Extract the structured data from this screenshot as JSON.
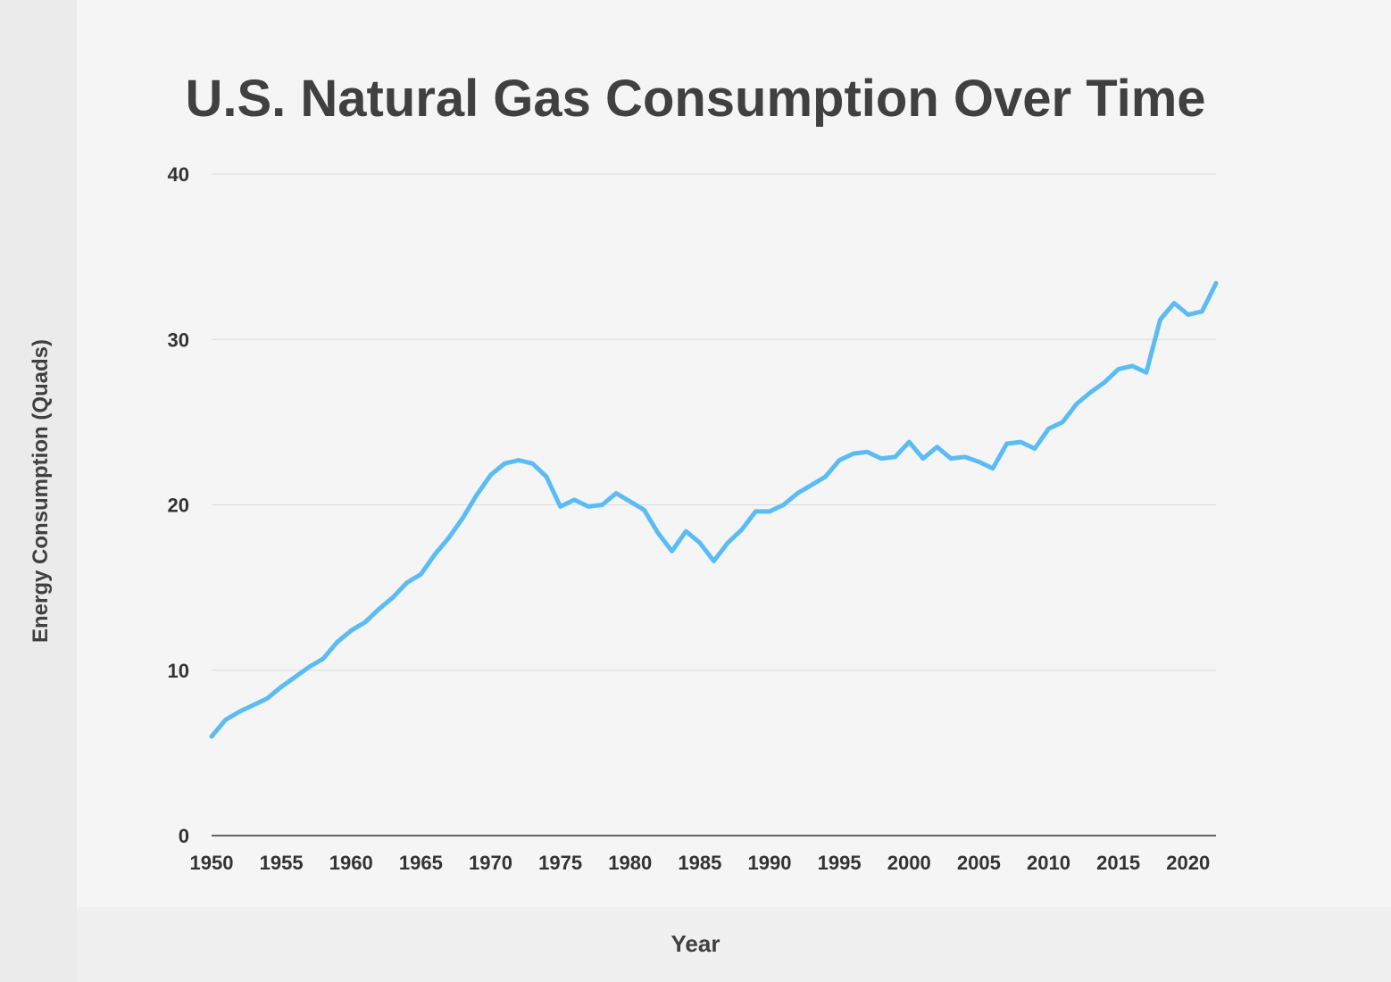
{
  "chart_data": {
    "type": "line",
    "title": "U.S. Natural Gas Consumption Over Time",
    "xlabel": "Year",
    "ylabel": "Energy Consumption (Quads)",
    "xlim": [
      1950,
      2022
    ],
    "ylim": [
      0,
      40
    ],
    "xticks": [
      1950,
      1955,
      1960,
      1965,
      1970,
      1975,
      1980,
      1985,
      1990,
      1995,
      2000,
      2005,
      2010,
      2015,
      2020
    ],
    "yticks": [
      0,
      10,
      20,
      30,
      40
    ],
    "grid": "horizontal",
    "line_color": "#5bbcf5",
    "series": [
      {
        "x": [
          1950,
          1951,
          1952,
          1953,
          1954,
          1955,
          1956,
          1957,
          1958,
          1959,
          1960,
          1961,
          1962,
          1963,
          1964,
          1965,
          1966,
          1967,
          1968,
          1969,
          1970,
          1971,
          1972,
          1973,
          1974,
          1975,
          1976,
          1977,
          1978,
          1979,
          1980,
          1981,
          1982,
          1983,
          1984,
          1985,
          1986,
          1987,
          1988,
          1989,
          1990,
          1991,
          1992,
          1993,
          1994,
          1995,
          1996,
          1997,
          1998,
          1999,
          2000,
          2001,
          2002,
          2003,
          2004,
          2005,
          2006,
          2007,
          2008,
          2009,
          2010,
          2011,
          2012,
          2013,
          2014,
          2015,
          2016,
          2017,
          2018,
          2019,
          2020,
          2021,
          2022
        ],
        "values": [
          6.0,
          7.0,
          7.5,
          7.9,
          8.3,
          9.0,
          9.6,
          10.2,
          10.7,
          11.7,
          12.4,
          12.9,
          13.7,
          14.4,
          15.3,
          15.8,
          17.0,
          18.0,
          19.2,
          20.6,
          21.8,
          22.5,
          22.7,
          22.5,
          21.7,
          19.9,
          20.3,
          19.9,
          20.0,
          20.7,
          20.2,
          19.7,
          18.3,
          17.2,
          18.4,
          17.7,
          16.6,
          17.7,
          18.5,
          19.6,
          19.6,
          20.0,
          20.7,
          21.2,
          21.7,
          22.7,
          23.1,
          23.2,
          22.8,
          22.9,
          23.8,
          22.8,
          23.5,
          22.8,
          22.9,
          22.6,
          22.2,
          23.7,
          23.8,
          23.4,
          24.6,
          25.0,
          26.1,
          26.8,
          27.4,
          28.2,
          28.4,
          28.0,
          31.2,
          32.2,
          31.5,
          31.7,
          33.4
        ]
      }
    ]
  }
}
